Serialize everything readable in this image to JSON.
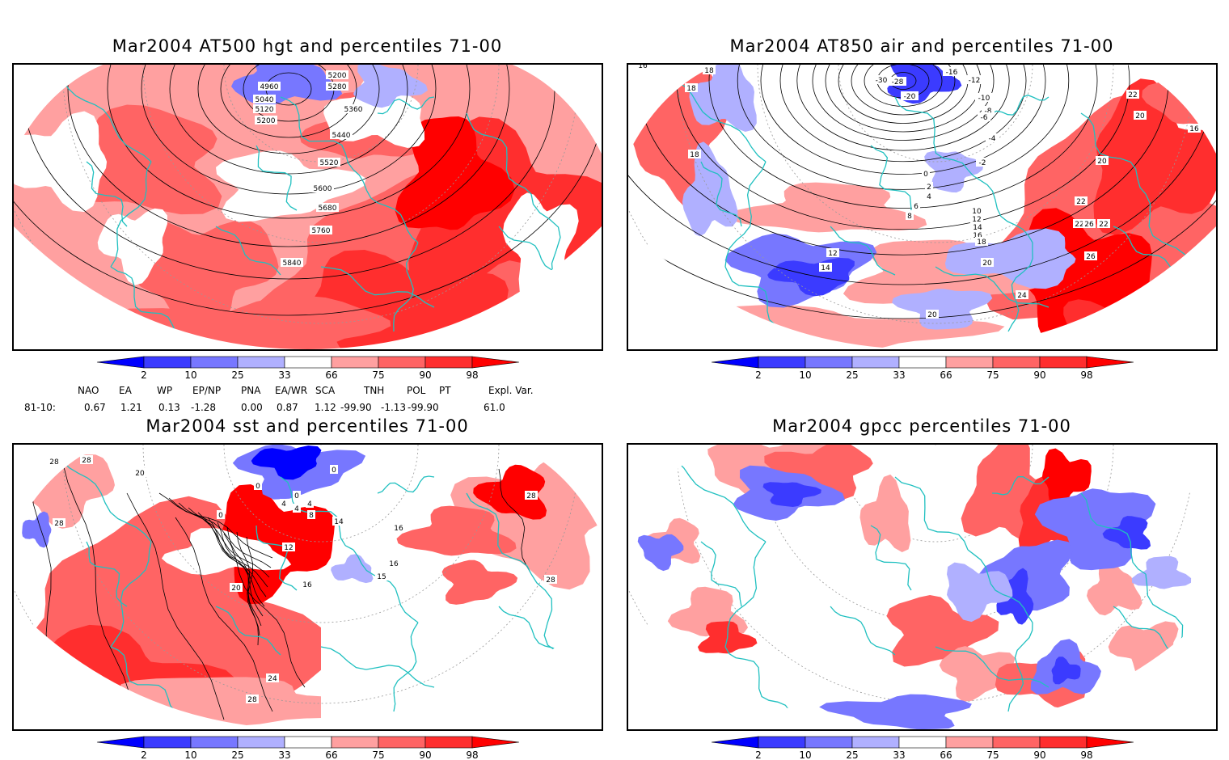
{
  "palette": {
    "below2": "#0000ff",
    "p2_10": "#3b3bff",
    "p10_25": "#7777ff",
    "p25_33": "#b0b0ff",
    "neutral": "#ffffff",
    "p66_75": "#ffa0a0",
    "p75_90": "#ff6464",
    "p90_98": "#ff2e2e",
    "above98": "#ff0000",
    "coast": "#20c0c0",
    "grid": "#999999",
    "contour": "#000000"
  },
  "colorbar": {
    "ticks": [
      "2",
      "10",
      "25",
      "33",
      "66",
      "75",
      "90",
      "98"
    ]
  },
  "panels": [
    {
      "title": "Mar2004 AT500 hgt and percentiles 71-00",
      "contour_labels": [
        "4960",
        "5040",
        "5120",
        "5200",
        "5200",
        "5280",
        "5360",
        "5440",
        "5520",
        "5600",
        "5680",
        "5760",
        "5840"
      ]
    },
    {
      "title": "Mar2004 AT850 air and percentiles 71-00",
      "contour_labels": [
        "16",
        "18",
        "18",
        "18",
        "-30",
        "-28",
        "-20",
        "-16",
        "-12",
        "-10",
        "-8",
        "-6",
        "-4",
        "-2",
        "0",
        "2",
        "4",
        "6",
        "8",
        "10",
        "12",
        "14",
        "16",
        "18",
        "20",
        "20",
        "22",
        "22",
        "22",
        "22",
        "24",
        "26",
        "26",
        "16",
        "12",
        "14",
        "20",
        "20"
      ]
    },
    {
      "title": "Mar2004 sst and percentiles 71-00",
      "contour_labels": [
        "28",
        "28",
        "28",
        "20",
        "0",
        "0",
        "0",
        "4",
        "4",
        "8",
        "4",
        "12",
        "16",
        "20",
        "24",
        "28",
        "14",
        "16",
        "15",
        "16",
        "28",
        "28",
        "0"
      ]
    },
    {
      "title": "Mar2004 gpcc percentiles 71-00",
      "contour_labels": []
    }
  ],
  "indices": {
    "headers": [
      "NAO",
      "EA",
      "WP",
      "EP/NP",
      "PNA",
      "EA/WR",
      "SCA",
      "TNH",
      "POL",
      "PT",
      "Expl. Var."
    ],
    "row_label": "81-10:",
    "values": [
      "0.67",
      "1.21",
      "0.13",
      "-1.28",
      "0.00",
      "0.87",
      "1.12",
      "-99.90",
      "-1.13",
      "-99.90",
      "61.0"
    ]
  }
}
